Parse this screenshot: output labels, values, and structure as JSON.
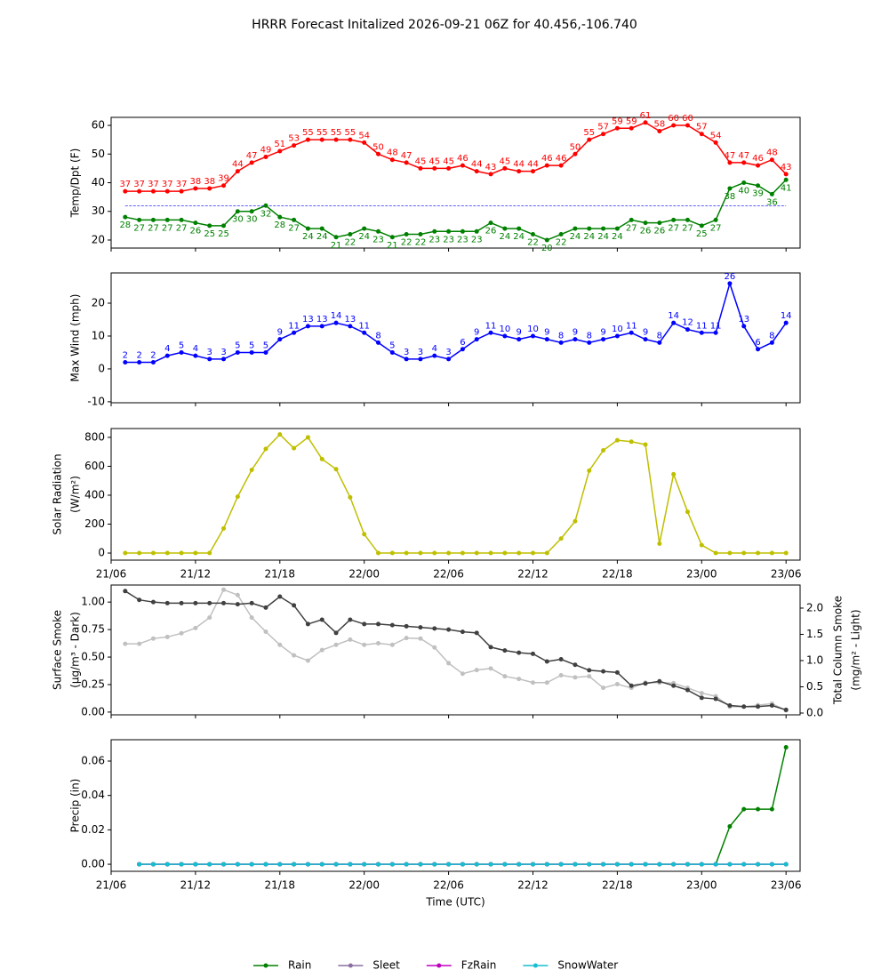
{
  "title": "HRRR Forecast Initalized 2026-09-21 06Z for 40.456,-106.740",
  "chart_data": [
    {
      "type": "line",
      "ylabel": [
        "Temp/Dpt (F)"
      ],
      "ylim": [
        17.2,
        62.8
      ],
      "yticks": [
        20,
        30,
        40,
        50,
        60
      ],
      "xlim": [
        "21/06",
        "23/07"
      ],
      "xticks": [
        "21/06",
        "21/12",
        "21/18",
        "22/00",
        "22/06",
        "22/12",
        "22/18",
        "23/00",
        "23/06"
      ],
      "xtick_labels": false,
      "hline": 32,
      "hline_color": "#0000ff",
      "x": [
        "21/07",
        "21/08",
        "21/09",
        "21/10",
        "21/11",
        "21/12",
        "21/13",
        "21/14",
        "21/15",
        "21/16",
        "21/17",
        "21/18",
        "21/19",
        "21/20",
        "21/21",
        "21/22",
        "21/23",
        "22/00",
        "22/01",
        "22/02",
        "22/03",
        "22/04",
        "22/05",
        "22/06",
        "22/07",
        "22/08",
        "22/09",
        "22/10",
        "22/11",
        "22/12",
        "22/13",
        "22/14",
        "22/15",
        "22/16",
        "22/17",
        "22/18",
        "22/19",
        "22/20",
        "22/21",
        "22/22",
        "22/23",
        "23/00",
        "23/01",
        "23/02",
        "23/03",
        "23/04",
        "23/05",
        "23/06"
      ],
      "series": [
        {
          "color": "#ff0000",
          "data_labels": "above",
          "values": [
            37,
            37,
            37,
            37,
            37,
            38,
            38,
            39,
            44,
            47,
            49,
            51,
            53,
            55,
            55,
            55,
            55,
            54,
            50,
            48,
            47,
            45,
            45,
            45,
            46,
            44,
            43,
            45,
            44,
            44,
            46,
            46,
            50,
            55,
            57,
            59,
            59,
            61,
            58,
            60,
            60,
            57,
            54,
            47,
            47,
            46,
            48,
            43
          ]
        },
        {
          "color": "#008000",
          "data_labels": "below",
          "values": [
            28,
            27,
            27,
            27,
            27,
            26,
            25,
            25,
            30,
            30,
            32,
            28,
            27,
            24,
            24,
            21,
            22,
            24,
            23,
            21,
            22,
            22,
            23,
            23,
            23,
            23,
            26,
            24,
            24,
            22,
            20,
            22,
            24,
            24,
            24,
            24,
            27,
            26,
            26,
            27,
            27,
            25,
            27,
            38,
            40,
            39,
            36,
            41
          ]
        }
      ]
    },
    {
      "type": "line",
      "ylabel": [
        "Max Wind (mph)"
      ],
      "ylim": [
        -10.3,
        29.2
      ],
      "yticks": [
        -10,
        0,
        10,
        20
      ],
      "xlim": [
        "21/06",
        "23/07"
      ],
      "xticks": [
        "21/06",
        "21/12",
        "21/18",
        "22/00",
        "22/06",
        "22/12",
        "22/18",
        "23/00",
        "23/06"
      ],
      "xtick_labels": false,
      "x": [
        "21/07",
        "21/08",
        "21/09",
        "21/10",
        "21/11",
        "21/12",
        "21/13",
        "21/14",
        "21/15",
        "21/16",
        "21/17",
        "21/18",
        "21/19",
        "21/20",
        "21/21",
        "21/22",
        "21/23",
        "22/00",
        "22/01",
        "22/02",
        "22/03",
        "22/04",
        "22/05",
        "22/06",
        "22/07",
        "22/08",
        "22/09",
        "22/10",
        "22/11",
        "22/12",
        "22/13",
        "22/14",
        "22/15",
        "22/16",
        "22/17",
        "22/18",
        "22/19",
        "22/20",
        "22/21",
        "22/22",
        "22/23",
        "23/00",
        "23/01",
        "23/02",
        "23/03",
        "23/04",
        "23/05",
        "23/06"
      ],
      "series": [
        {
          "color": "#0000ff",
          "data_labels": "above",
          "values": [
            2,
            2,
            2,
            4,
            5,
            4,
            3,
            3,
            5,
            5,
            5,
            9,
            11,
            13,
            13,
            14,
            13,
            11,
            8,
            5,
            3,
            3,
            4,
            3,
            6,
            9,
            11,
            10,
            9,
            10,
            9,
            8,
            9,
            8,
            9,
            10,
            11,
            9,
            8,
            14,
            12,
            11,
            11,
            26,
            13,
            6,
            8,
            14
          ]
        }
      ]
    },
    {
      "type": "line",
      "ylabel": [
        "Solar Radiation",
        "(W/m²)"
      ],
      "ylim": [
        -49,
        861
      ],
      "yticks": [
        0,
        200,
        400,
        600,
        800
      ],
      "xlim": [
        "21/06",
        "23/07"
      ],
      "xticks": [
        "21/06",
        "21/12",
        "21/18",
        "22/00",
        "22/06",
        "22/12",
        "22/18",
        "23/00",
        "23/06"
      ],
      "xtick_labels": true,
      "x": [
        "21/07",
        "21/08",
        "21/09",
        "21/10",
        "21/11",
        "21/12",
        "21/13",
        "21/14",
        "21/15",
        "21/16",
        "21/17",
        "21/18",
        "21/19",
        "21/20",
        "21/21",
        "21/22",
        "21/23",
        "22/00",
        "22/01",
        "22/02",
        "22/03",
        "22/04",
        "22/05",
        "22/06",
        "22/07",
        "22/08",
        "22/09",
        "22/10",
        "22/11",
        "22/12",
        "22/13",
        "22/14",
        "22/15",
        "22/16",
        "22/17",
        "22/18",
        "22/19",
        "22/20",
        "22/21",
        "22/22",
        "22/23",
        "23/00",
        "23/01",
        "23/02",
        "23/03",
        "23/04",
        "23/05",
        "23/06"
      ],
      "series": [
        {
          "color": "#bfbf00",
          "values": [
            0,
            0,
            0,
            0,
            0,
            0,
            0,
            170,
            390,
            575,
            720,
            820,
            725,
            800,
            650,
            580,
            385,
            130,
            0,
            0,
            0,
            0,
            0,
            0,
            0,
            0,
            0,
            0,
            0,
            0,
            0,
            100,
            220,
            570,
            710,
            780,
            770,
            750,
            65,
            545,
            285,
            55,
            0,
            0,
            0,
            0,
            0,
            0
          ]
        }
      ]
    },
    {
      "type": "line",
      "ylabel": [
        "Surface Smoke",
        "(µg/m³ - Dark)"
      ],
      "y2label": [
        "Total Column Smoke",
        "(mg/m² - Light)"
      ],
      "ylim": [
        -0.025,
        1.155
      ],
      "yticks": [
        {
          "value": 0,
          "label": "0.00"
        },
        0.25,
        {
          "value": 0.5,
          "label": "0.50"
        },
        0.75,
        {
          "value": 1,
          "label": "1.00"
        }
      ],
      "y2lim": [
        -0.034,
        2.44
      ],
      "y2ticks": [
        {
          "value": 0,
          "label": "0.0"
        },
        0.5,
        {
          "value": 1,
          "label": "1.0"
        },
        1.5,
        {
          "value": 2,
          "label": "2.0"
        }
      ],
      "xlim": [
        "21/06",
        "23/07"
      ],
      "xticks": [
        "21/06",
        "21/12",
        "21/18",
        "22/00",
        "22/06",
        "22/12",
        "22/18",
        "23/00",
        "23/06"
      ],
      "xtick_labels": false,
      "x": [
        "21/07",
        "21/08",
        "21/09",
        "21/10",
        "21/11",
        "21/12",
        "21/13",
        "21/14",
        "21/15",
        "21/16",
        "21/17",
        "21/18",
        "21/19",
        "21/20",
        "21/21",
        "21/22",
        "21/23",
        "22/00",
        "22/01",
        "22/02",
        "22/03",
        "22/04",
        "22/05",
        "22/06",
        "22/07",
        "22/08",
        "22/09",
        "22/10",
        "22/11",
        "22/12",
        "22/13",
        "22/14",
        "22/15",
        "22/16",
        "22/17",
        "22/18",
        "22/19",
        "22/20",
        "22/21",
        "22/22",
        "22/23",
        "23/00",
        "23/01",
        "23/02",
        "23/03",
        "23/04",
        "23/05",
        "23/06"
      ],
      "series": [
        {
          "color": "#c0c0c0",
          "axis": "y2",
          "values": [
            1.32,
            1.32,
            1.42,
            1.45,
            1.52,
            1.62,
            1.82,
            2.35,
            2.25,
            1.82,
            1.55,
            1.3,
            1.1,
            1.0,
            1.2,
            1.3,
            1.4,
            1.3,
            1.33,
            1.3,
            1.43,
            1.42,
            1.25,
            0.95,
            0.75,
            0.82,
            0.85,
            0.7,
            0.65,
            0.58,
            0.58,
            0.72,
            0.68,
            0.7,
            0.48,
            0.55,
            0.48,
            0.58,
            0.58,
            0.57,
            0.48,
            0.38,
            0.32,
            0.12,
            0.12,
            0.15,
            0.18,
            0.05
          ]
        },
        {
          "color": "#404040",
          "values": [
            1.1,
            1.02,
            1.0,
            0.99,
            0.99,
            0.99,
            0.99,
            0.99,
            0.98,
            0.99,
            0.95,
            1.05,
            0.97,
            0.8,
            0.84,
            0.72,
            0.84,
            0.8,
            0.8,
            0.79,
            0.78,
            0.77,
            0.76,
            0.75,
            0.73,
            0.72,
            0.59,
            0.56,
            0.54,
            0.53,
            0.46,
            0.48,
            0.43,
            0.38,
            0.37,
            0.36,
            0.24,
            0.26,
            0.28,
            0.24,
            0.2,
            0.13,
            0.12,
            0.06,
            0.05,
            0.05,
            0.06,
            0.02
          ]
        }
      ]
    },
    {
      "type": "line",
      "ylabel": [
        "Precip (in)"
      ],
      "xlabel": "Time (UTC)",
      "legend": "bottom",
      "ylim": [
        -0.0041,
        0.0724
      ],
      "yticks": [
        {
          "value": 0,
          "label": "0.00"
        },
        0.02,
        0.04,
        0.06
      ],
      "xlim": [
        "21/06",
        "23/07"
      ],
      "xticks": [
        "21/06",
        "21/12",
        "21/18",
        "22/00",
        "22/06",
        "22/12",
        "22/18",
        "23/00",
        "23/06"
      ],
      "xtick_labels": true,
      "x": [
        "21/08",
        "21/09",
        "21/10",
        "21/11",
        "21/12",
        "21/13",
        "21/14",
        "21/15",
        "21/16",
        "21/17",
        "21/18",
        "21/19",
        "21/20",
        "21/21",
        "21/22",
        "21/23",
        "22/00",
        "22/01",
        "22/02",
        "22/03",
        "22/04",
        "22/05",
        "22/06",
        "22/07",
        "22/08",
        "22/09",
        "22/10",
        "22/11",
        "22/12",
        "22/13",
        "22/14",
        "22/15",
        "22/16",
        "22/17",
        "22/18",
        "22/19",
        "22/20",
        "22/21",
        "22/22",
        "22/23",
        "23/00",
        "23/01",
        "23/02",
        "23/03",
        "23/04",
        "23/05",
        "23/06"
      ],
      "series": [
        {
          "name": "Rain",
          "color": "#008000",
          "values": [
            0,
            0,
            0,
            0,
            0,
            0,
            0,
            0,
            0,
            0,
            0,
            0,
            0,
            0,
            0,
            0,
            0,
            0,
            0,
            0,
            0,
            0,
            0,
            0,
            0,
            0,
            0,
            0,
            0,
            0,
            0,
            0,
            0,
            0,
            0,
            0,
            0,
            0,
            0,
            0,
            0,
            0,
            0.022,
            0.032,
            0.032,
            0.032,
            0.068
          ]
        },
        {
          "name": "Sleet",
          "color": "#8c6fa0",
          "values": [
            0,
            0,
            0,
            0,
            0,
            0,
            0,
            0,
            0,
            0,
            0,
            0,
            0,
            0,
            0,
            0,
            0,
            0,
            0,
            0,
            0,
            0,
            0,
            0,
            0,
            0,
            0,
            0,
            0,
            0,
            0,
            0,
            0,
            0,
            0,
            0,
            0,
            0,
            0,
            0,
            0,
            0,
            0,
            0,
            0,
            0,
            0
          ]
        },
        {
          "name": "FzRain",
          "color": "#c000c0",
          "values": [
            0,
            0,
            0,
            0,
            0,
            0,
            0,
            0,
            0,
            0,
            0,
            0,
            0,
            0,
            0,
            0,
            0,
            0,
            0,
            0,
            0,
            0,
            0,
            0,
            0,
            0,
            0,
            0,
            0,
            0,
            0,
            0,
            0,
            0,
            0,
            0,
            0,
            0,
            0,
            0,
            0,
            0,
            0,
            0,
            0,
            0,
            0
          ]
        },
        {
          "name": "SnowWater",
          "color": "#17becf",
          "values": [
            0,
            0,
            0,
            0,
            0,
            0,
            0,
            0,
            0,
            0,
            0,
            0,
            0,
            0,
            0,
            0,
            0,
            0,
            0,
            0,
            0,
            0,
            0,
            0,
            0,
            0,
            0,
            0,
            0,
            0,
            0,
            0,
            0,
            0,
            0,
            0,
            0,
            0,
            0,
            0,
            0,
            0,
            0,
            0,
            0,
            0,
            0
          ]
        }
      ]
    }
  ]
}
